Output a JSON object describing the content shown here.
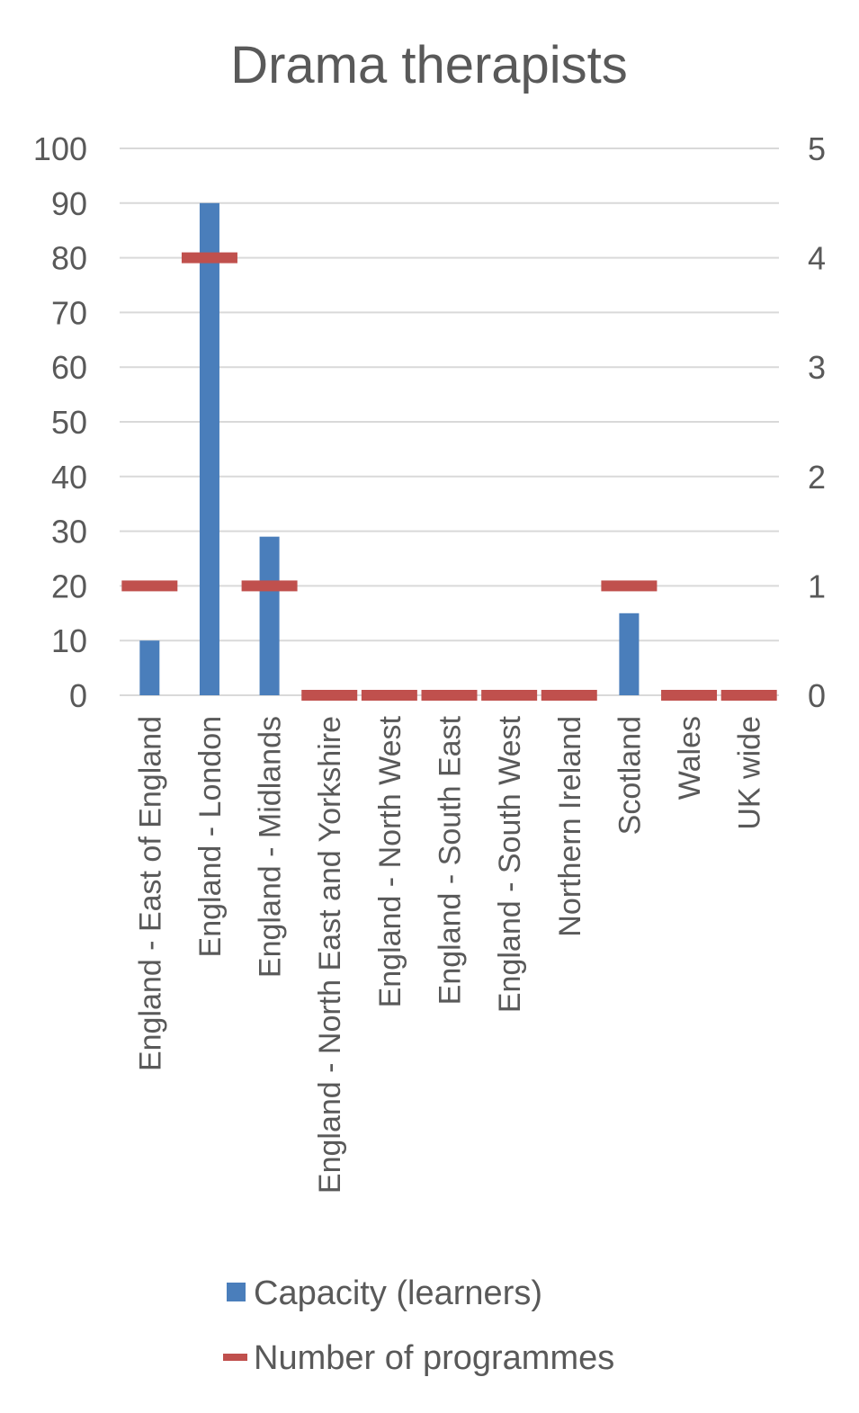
{
  "chart_data": {
    "type": "bar",
    "title": "Drama therapists",
    "categories": [
      "England - East of England",
      "England - London",
      "England - Midlands",
      "England - North East and Yorkshire",
      "England - North West",
      "England - South East",
      "England - South West",
      "Northern Ireland",
      "Scotland",
      "Wales",
      "UK wide"
    ],
    "series": [
      {
        "name": "Capacity (learners)",
        "type": "bar",
        "axis": "left",
        "color": "#4a7ebb",
        "values": [
          10,
          90,
          29,
          0,
          0,
          0,
          0,
          0,
          15,
          0,
          0
        ]
      },
      {
        "name": "Number of programmes",
        "type": "marker-dash",
        "axis": "right",
        "color": "#c0504d",
        "values": [
          1,
          4,
          1,
          0,
          0,
          0,
          0,
          0,
          1,
          0,
          0
        ]
      }
    ],
    "y_left": {
      "min": 0,
      "max": 100,
      "ticks": [
        "0",
        "10",
        "20",
        "30",
        "40",
        "50",
        "60",
        "70",
        "80",
        "90",
        "100"
      ]
    },
    "y_right": {
      "min": 0,
      "max": 5,
      "ticks": [
        "0",
        "1",
        "2",
        "3",
        "4",
        "5"
      ]
    },
    "grid": true,
    "legend_position": "bottom"
  }
}
